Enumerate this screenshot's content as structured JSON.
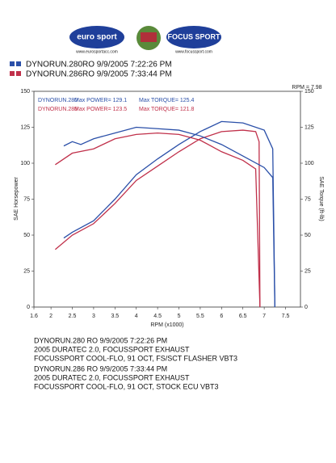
{
  "header": {
    "logo_left": "euro sport",
    "url_left": "www.eurosportacc.com",
    "logo_right": "FOCUS SPORT",
    "url_right": "www.focussport.com"
  },
  "legend": [
    {
      "label": "DYNORUN.280RO  9/9/2005 7:22:26 PM",
      "color": "#2a4fa8"
    },
    {
      "label": "DYNORUN.286RO  9/9/2005 7:33:44 PM",
      "color": "#c0304a"
    }
  ],
  "chart_data": {
    "type": "line",
    "xlabel": "RPM (x1000)",
    "ylabel": "SAE Horsepower",
    "y2label": "SAE Torque (ft-lb)",
    "corner_label": "RPM = 7.98",
    "annotations": [
      {
        "text": [
          "DYNORUN.280",
          "Max POWER= 129.1",
          "Max TORQUE= 125.4"
        ],
        "color": "#2a4fa8"
      },
      {
        "text": [
          "DYNORUN.286",
          "Max POWER= 123.5",
          "Max TORQUE= 121.8"
        ],
        "color": "#c0304a"
      }
    ],
    "xlim": [
      1.6,
      7.85
    ],
    "xticks": [
      1.6,
      2.0,
      2.5,
      3.0,
      3.5,
      4.0,
      4.5,
      5.0,
      5.5,
      6.0,
      6.5,
      7.0,
      7.5
    ],
    "ylim": [
      0,
      150
    ],
    "yticks": [
      0,
      25,
      50,
      75,
      100,
      125,
      150
    ],
    "y2lim": [
      0,
      150
    ],
    "y2ticks": [
      0,
      25,
      50,
      75,
      100,
      125,
      150
    ],
    "grid": false,
    "series": [
      {
        "color": "#2a4fa8",
        "axis": "y",
        "x": [
          2.3,
          2.5,
          3.0,
          3.5,
          4.0,
          4.5,
          5.0,
          5.5,
          6.0,
          6.5,
          7.0,
          7.2,
          7.25
        ],
        "values": [
          48,
          52,
          60,
          75,
          92,
          103,
          113,
          122,
          129,
          128,
          123,
          110,
          0
        ]
      },
      {
        "color": "#c0304a",
        "axis": "y",
        "x": [
          2.1,
          2.5,
          3.0,
          3.5,
          4.0,
          4.5,
          5.0,
          5.5,
          6.0,
          6.5,
          6.8,
          6.88,
          6.9
        ],
        "values": [
          40,
          50,
          58,
          72,
          88,
          98,
          108,
          117,
          122,
          123,
          122,
          115,
          0
        ]
      },
      {
        "color": "#2a4fa8",
        "axis": "y2",
        "x": [
          2.3,
          2.5,
          2.7,
          3.0,
          3.5,
          4.0,
          4.5,
          5.0,
          5.5,
          6.0,
          6.5,
          7.0,
          7.2,
          7.25
        ],
        "values": [
          112,
          115,
          113,
          117,
          121,
          125,
          124,
          123,
          119,
          113,
          105,
          97,
          90,
          0
        ]
      },
      {
        "color": "#c0304a",
        "axis": "y2",
        "x": [
          2.1,
          2.5,
          3.0,
          3.5,
          4.0,
          4.5,
          5.0,
          5.5,
          6.0,
          6.5,
          6.8,
          6.9
        ],
        "values": [
          99,
          107,
          110,
          117,
          120,
          121,
          120,
          116,
          108,
          102,
          96,
          0
        ]
      }
    ]
  },
  "notes": [
    [
      "DYNORUN.280      RO  9/9/2005 7:22:26 PM",
      "2005 DURATEC 2.0, FOCUSSPORT EXHAUST",
      "FOCUSSPORT COOL-FLO, 91 OCT, FS/SCT FLASHER VBT3"
    ],
    [
      "DYNORUN.286      RO  9/9/2005 7:33:44 PM",
      "2005 DURATEC 2.0, FOCUSSPORT EXHAUST",
      "FOCUSSPORT COOL-FLO, 91 OCT, STOCK ECU VBT3"
    ]
  ]
}
